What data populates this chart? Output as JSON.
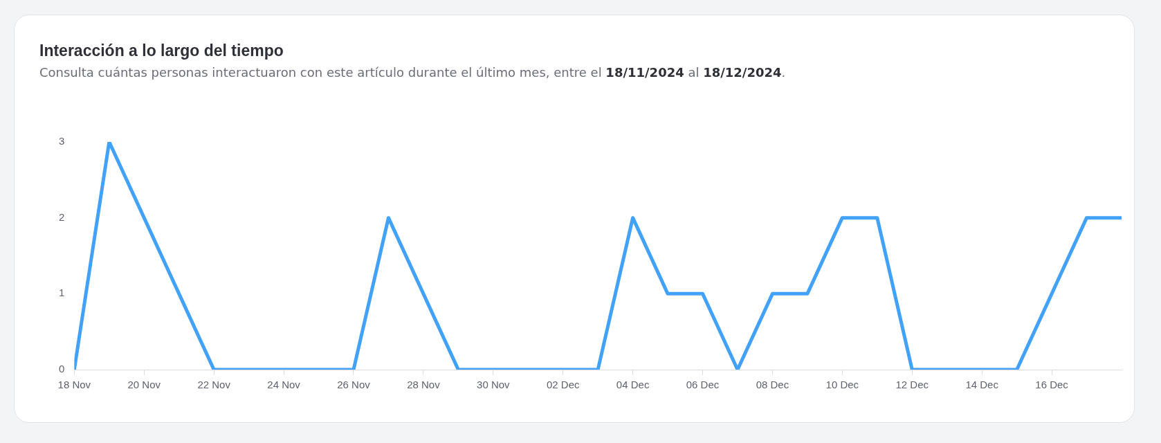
{
  "chart_data": {
    "type": "line",
    "title": "Interacción a lo largo del tiempo",
    "subtitle": "Consulta cuántas personas interactuaron con este artículo durante el último mes, entre el 18/11/2024 al 18/12/2024.",
    "x": [
      "2024-11-18",
      "2024-11-19",
      "2024-11-20",
      "2024-11-21",
      "2024-11-22",
      "2024-11-23",
      "2024-11-24",
      "2024-11-25",
      "2024-11-26",
      "2024-11-27",
      "2024-11-28",
      "2024-11-29",
      "2024-11-30",
      "2024-12-01",
      "2024-12-02",
      "2024-12-03",
      "2024-12-04",
      "2024-12-05",
      "2024-12-06",
      "2024-12-07",
      "2024-12-08",
      "2024-12-09",
      "2024-12-10",
      "2024-12-11",
      "2024-12-12",
      "2024-12-13",
      "2024-12-14",
      "2024-12-15",
      "2024-12-16",
      "2024-12-17",
      "2024-12-18"
    ],
    "series": [
      {
        "color": "#42a1f8",
        "values": [
          0,
          3,
          2,
          1,
          0,
          0,
          0,
          0,
          0,
          2,
          1,
          0,
          0,
          0,
          0,
          0,
          2,
          1,
          1,
          0,
          1,
          1,
          2,
          2,
          0,
          0,
          0,
          0,
          1,
          2,
          2
        ]
      }
    ],
    "xlim": [
      "2024-11-18",
      "2024-12-18"
    ],
    "xticks": [
      {
        "value": "2024-11-18",
        "label": "18 Nov"
      },
      {
        "value": "2024-11-20",
        "label": "20 Nov"
      },
      {
        "value": "2024-11-22",
        "label": "22 Nov"
      },
      {
        "value": "2024-11-24",
        "label": "24 Nov"
      },
      {
        "value": "2024-11-26",
        "label": "26 Nov"
      },
      {
        "value": "2024-11-28",
        "label": "28 Nov"
      },
      {
        "value": "2024-11-30",
        "label": "30 Nov"
      },
      {
        "value": "2024-12-02",
        "label": "02 Dec"
      },
      {
        "value": "2024-12-04",
        "label": "04 Dec"
      },
      {
        "value": "2024-12-06",
        "label": "06 Dec"
      },
      {
        "value": "2024-12-08",
        "label": "08 Dec"
      },
      {
        "value": "2024-12-10",
        "label": "10 Dec"
      },
      {
        "value": "2024-12-12",
        "label": "12 Dec"
      },
      {
        "value": "2024-12-14",
        "label": "14 Dec"
      },
      {
        "value": "2024-12-16",
        "label": "16 Dec"
      }
    ],
    "ylim": [
      0,
      3
    ],
    "yticks": [
      0,
      1,
      2,
      3
    ],
    "grid": false,
    "legend": false,
    "marker": "none",
    "line_style": "solid"
  }
}
